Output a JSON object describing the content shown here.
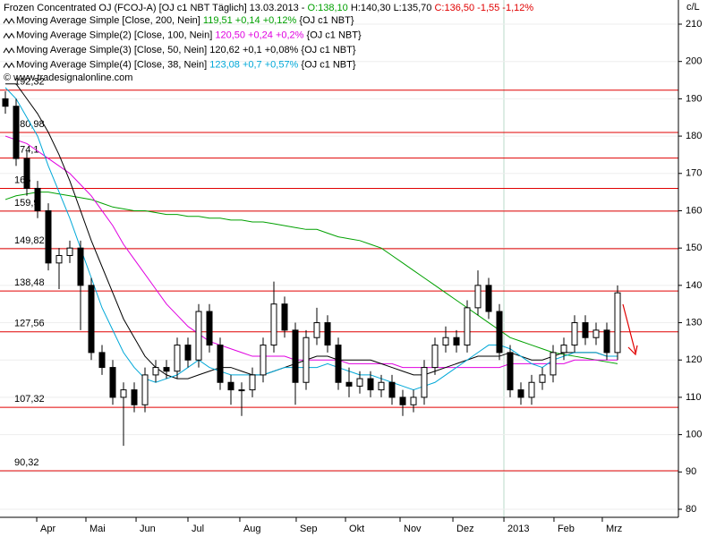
{
  "chart_data": {
    "type": "candlestick",
    "header": {
      "name": "Frozen Concentrated OJ (FCOJ-A) [OJ c1 NBT  Täglich] 13.03.2013 -",
      "open": "O:138,10",
      "high": "H:140,30",
      "low": "L:135,70",
      "close": "C:136,50",
      "change": "-1,55 -1,12%"
    },
    "copyright": "© www.tradesignalonline.com",
    "unit": "c/L",
    "open": [
      190,
      188,
      174,
      166,
      160,
      146,
      148,
      150,
      140,
      122,
      118,
      110,
      112,
      108,
      116,
      118,
      117,
      124,
      120,
      133,
      124,
      114,
      112,
      112,
      116,
      124,
      135,
      128,
      114,
      126,
      130,
      124,
      114,
      113,
      115,
      112,
      114,
      110,
      108,
      110,
      118,
      124,
      126,
      124,
      134,
      140,
      133,
      122,
      112,
      110,
      114,
      116,
      122,
      124,
      130,
      126,
      128,
      122
    ],
    "high": [
      192,
      190,
      176,
      168,
      162,
      150,
      152,
      152,
      142,
      124,
      120,
      114,
      114,
      118,
      120,
      120,
      126,
      126,
      135,
      135,
      126,
      116,
      114,
      118,
      126,
      141,
      137,
      130,
      128,
      134,
      132,
      126,
      118,
      117,
      117,
      116,
      116,
      112,
      112,
      120,
      126,
      129,
      128,
      136,
      144,
      142,
      135,
      124,
      114,
      116,
      118,
      124,
      126,
      132,
      132,
      130,
      130,
      140
    ],
    "low": [
      186,
      172,
      164,
      158,
      144,
      139,
      146,
      128,
      120,
      116,
      108,
      97,
      106,
      106,
      114,
      115,
      115,
      118,
      118,
      122,
      112,
      108,
      105,
      110,
      114,
      122,
      126,
      108,
      112,
      124,
      122,
      112,
      110,
      111,
      110,
      110,
      108,
      105,
      106,
      108,
      116,
      122,
      122,
      122,
      132,
      131,
      120,
      110,
      108,
      108,
      112,
      114,
      120,
      122,
      124,
      124,
      120,
      120
    ],
    "close": [
      188,
      174,
      166,
      160,
      146,
      148,
      150,
      140,
      122,
      118,
      110,
      112,
      108,
      116,
      118,
      117,
      124,
      120,
      133,
      124,
      114,
      112,
      112,
      116,
      124,
      135,
      128,
      114,
      126,
      130,
      124,
      114,
      113,
      115,
      112,
      114,
      110,
      108,
      110,
      118,
      124,
      126,
      124,
      134,
      140,
      133,
      122,
      112,
      110,
      114,
      116,
      122,
      124,
      130,
      126,
      128,
      122,
      138
    ],
    "series": [
      {
        "name": "Moving Average Simple [Close, 200, Nein]",
        "last": "119,51 +0,14 +0,12%",
        "source": "{OJ c1 NBT}",
        "color": "#00a000",
        "values": [
          163,
          164,
          164.5,
          165,
          165,
          164.5,
          164,
          163.5,
          163,
          162,
          161,
          160.5,
          160,
          160,
          159.5,
          159,
          159,
          158.5,
          158.5,
          158,
          158,
          157.5,
          157.5,
          157,
          157,
          156.5,
          156,
          155.5,
          155,
          155,
          154,
          153,
          152.5,
          152,
          151,
          150,
          148,
          146,
          144,
          142,
          140,
          138,
          136,
          134,
          132,
          130,
          128,
          126,
          125,
          124,
          123,
          122,
          121.5,
          121,
          120.5,
          120,
          119.5,
          119
        ]
      },
      {
        "name": "Moving Average Simple(2) [Close, 100, Nein]",
        "last": "120,50 +0,24 +0,2%",
        "source": "{OJ c1 NBT}",
        "color": "#e000e0",
        "values": [
          180,
          179,
          178,
          176,
          174,
          172,
          170,
          167,
          164,
          160,
          156,
          151,
          147,
          143,
          139,
          135,
          132,
          129,
          127,
          125,
          124,
          123,
          122,
          121,
          121,
          121,
          121,
          120,
          120,
          120,
          120,
          120,
          119,
          119,
          119,
          119,
          119,
          118,
          118,
          118,
          118,
          118,
          118,
          118,
          118,
          118,
          118,
          119,
          119,
          119,
          119,
          119,
          119,
          120,
          120,
          120,
          120,
          120
        ]
      },
      {
        "name": "Moving Average Simple(3) [Close, 50, Nein]",
        "last": "120,62 +0,1 +0,08%",
        "source": "{OJ c1 NBT}",
        "color": "#000000",
        "values": [
          194,
          194,
          190,
          186,
          181,
          175,
          168,
          160,
          152,
          145,
          138,
          131,
          126,
          121,
          118,
          116,
          115,
          115,
          116,
          117,
          118,
          118,
          117,
          116,
          116,
          117,
          118,
          119,
          120,
          121,
          121,
          120,
          120,
          120,
          120,
          119,
          118,
          117,
          116,
          116,
          117,
          118,
          119,
          120,
          121,
          121,
          121,
          122,
          121,
          120,
          120,
          121,
          122,
          122,
          122,
          122,
          121,
          121
        ]
      },
      {
        "name": "Moving Average Simple(4) [Close, 38, Nein]",
        "last": "123,08 +0,7 +0,57%",
        "source": "{OJ c1 NBT}",
        "color": "#00a8d8",
        "values": [
          193,
          190,
          185,
          180,
          172,
          165,
          158,
          150,
          142,
          134,
          128,
          122,
          118,
          115,
          114,
          115,
          116,
          118,
          120,
          118,
          117,
          116,
          116,
          116,
          116,
          117,
          118,
          118,
          118,
          118,
          119,
          118,
          117,
          116,
          116,
          115,
          114,
          113,
          112,
          113,
          114,
          116,
          118,
          120,
          122,
          124,
          124,
          123,
          121,
          119,
          118,
          120,
          121,
          122,
          122,
          122,
          121,
          121
        ]
      }
    ],
    "levels": [
      {
        "value": 192.32,
        "label": "192,32"
      },
      {
        "value": 180.98,
        "label": "180,98"
      },
      {
        "value": 174.1,
        "label": "174,1"
      },
      {
        "value": 166,
        "label": "166"
      },
      {
        "value": 159.9,
        "label": "159,9"
      },
      {
        "value": 149.82,
        "label": "149,82"
      },
      {
        "value": 138.48,
        "label": "138,48"
      },
      {
        "value": 127.56,
        "label": "127,56"
      },
      {
        "value": 107.32,
        "label": "107,32"
      },
      {
        "value": 90.32,
        "label": "90,32"
      }
    ],
    "level_color": "#e00000",
    "xticks": [
      {
        "value": 2.92,
        "label": "Apr"
      },
      {
        "value": 7.5,
        "label": "Mai"
      },
      {
        "value": 12.17,
        "label": "Jun"
      },
      {
        "value": 17,
        "label": "Jul"
      },
      {
        "value": 21.83,
        "label": "Aug"
      },
      {
        "value": 27.08,
        "label": "Sep"
      },
      {
        "value": 31.67,
        "label": "Okt"
      },
      {
        "value": 36.75,
        "label": "Nov"
      },
      {
        "value": 41.67,
        "label": "Dez"
      },
      {
        "value": 46.42,
        "label": "2013"
      },
      {
        "value": 51.08,
        "label": "Feb"
      },
      {
        "value": 55.58,
        "label": "Mrz"
      }
    ],
    "ylim": [
      80,
      210
    ],
    "yticks": [
      80,
      90,
      100,
      110,
      120,
      130,
      140,
      150,
      160,
      170,
      180,
      190,
      200,
      210
    ],
    "grid": true
  }
}
